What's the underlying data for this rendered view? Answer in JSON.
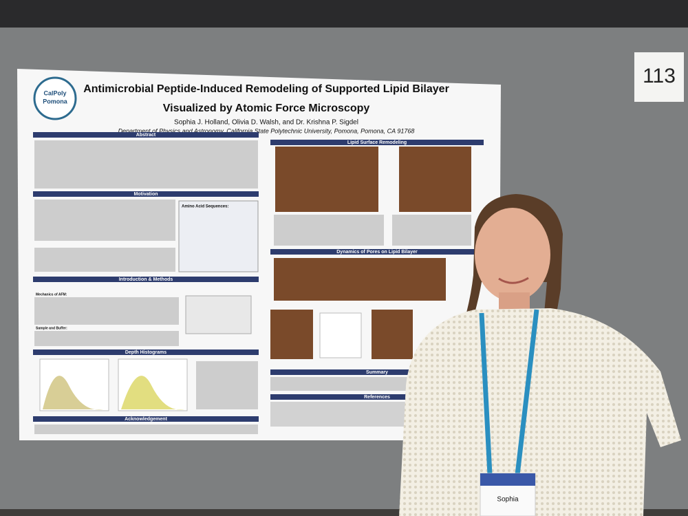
{
  "board_number": "113",
  "poster": {
    "logo": [
      "CalPoly",
      "Pomona"
    ],
    "title_line1": "Antimicrobial Peptide-Induced Remodeling of Supported Lipid Bilayer",
    "title_line2": "Visualized by Atomic Force Microscopy",
    "authors": "Sophia J. Holland, Olivia D. Walsh, and Dr. Krishna P. Sigdel",
    "affiliation": "Department of Physics and Astronomy, California State Polytechnic University, Pomona, Pomona, CA 91768",
    "sections": [
      "Abstract",
      "Motivation",
      "Introduction & Methods",
      "Depth Histograms",
      "Acknowledgement",
      "Lipid Surface Remodeling",
      "Dynamics of Pores on Lipid Bilayer",
      "Summary",
      "References"
    ],
    "amino_title": "Amino Acid Sequences:",
    "mechanics": "Mechanics of AFM:",
    "sample": "Sample and Buffer:"
  },
  "badge": {
    "name": "Sophia"
  }
}
